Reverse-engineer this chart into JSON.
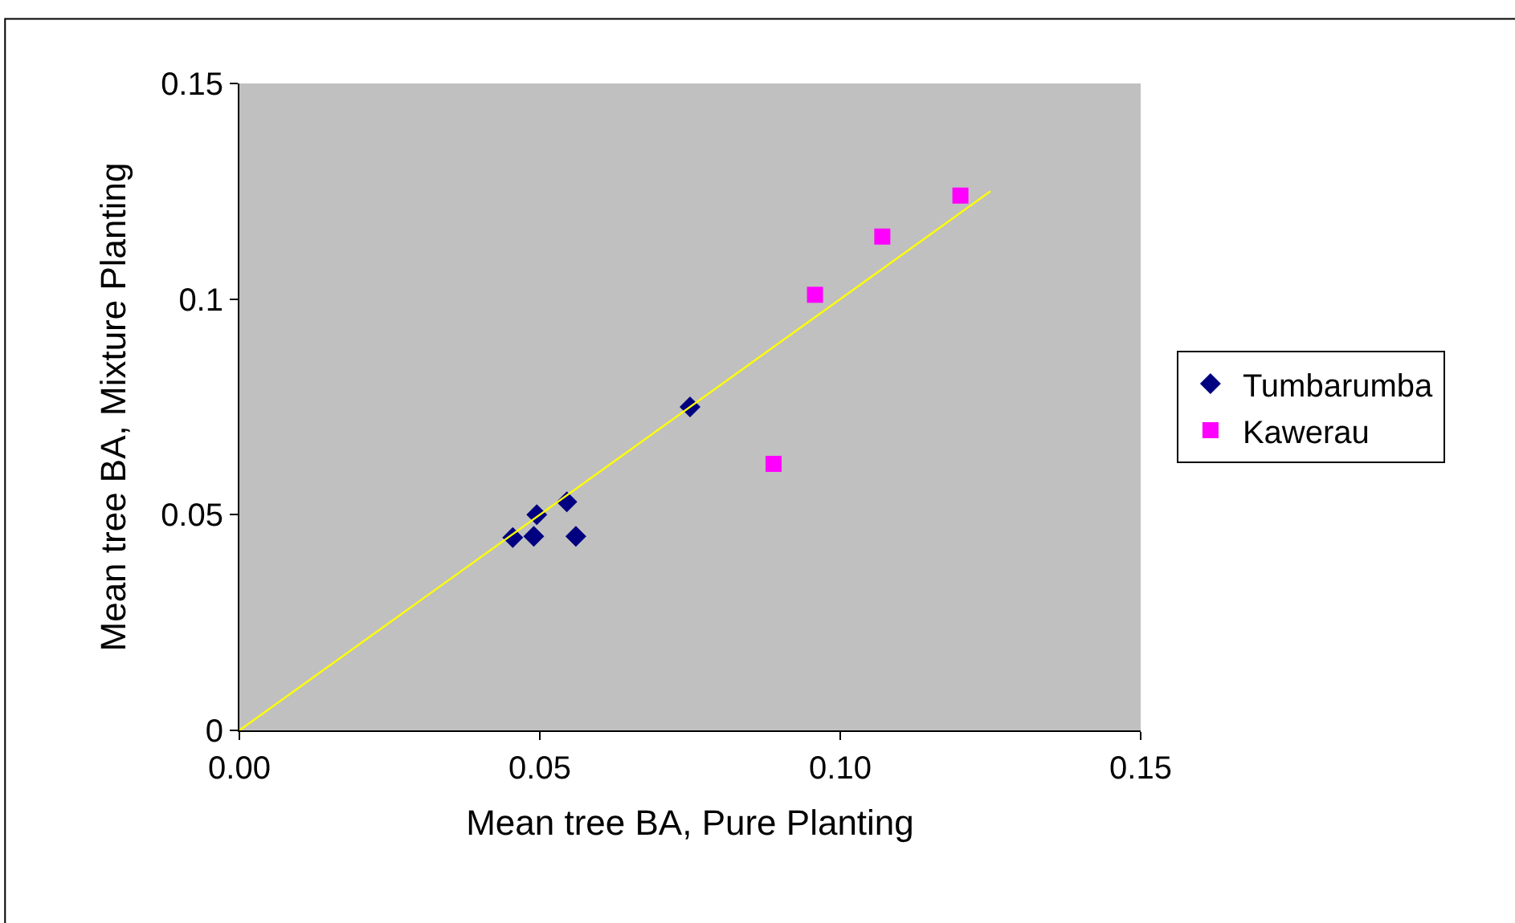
{
  "chart_data": {
    "type": "scatter",
    "xlabel": "Mean tree BA, Pure Planting",
    "ylabel": "Mean tree BA, Mixture Planting",
    "series": [
      {
        "name": "Tumbarumba",
        "color": "#000080",
        "marker": "diamond",
        "x": [
          0.075,
          0.0545,
          0.0495,
          0.0455,
          0.049,
          0.056
        ],
        "values": [
          0.075,
          0.053,
          0.05,
          0.0447,
          0.045,
          0.045
        ]
      },
      {
        "name": "Kawerau",
        "color": "#ff00ff",
        "marker": "square",
        "x": [
          0.12,
          0.107,
          0.0958,
          0.0889
        ],
        "values": [
          0.124,
          0.1145,
          0.101,
          0.0618
        ]
      },
      {
        "type": "line",
        "color": "#ffff00",
        "x": [
          0,
          0.125
        ],
        "values": [
          0,
          0.125
        ]
      }
    ],
    "xlim": [
      0,
      0.15
    ],
    "xticks": [
      {
        "value": 0,
        "label": "0.00"
      },
      {
        "value": 0.05,
        "label": "0.05"
      },
      {
        "value": 0.1,
        "label": "0.10"
      },
      {
        "value": 0.15,
        "label": "0.15"
      }
    ],
    "ylim": [
      0,
      0.15
    ],
    "yticks": [
      0,
      0.05,
      0.1,
      0.15
    ],
    "grid": false,
    "legend": "right"
  }
}
